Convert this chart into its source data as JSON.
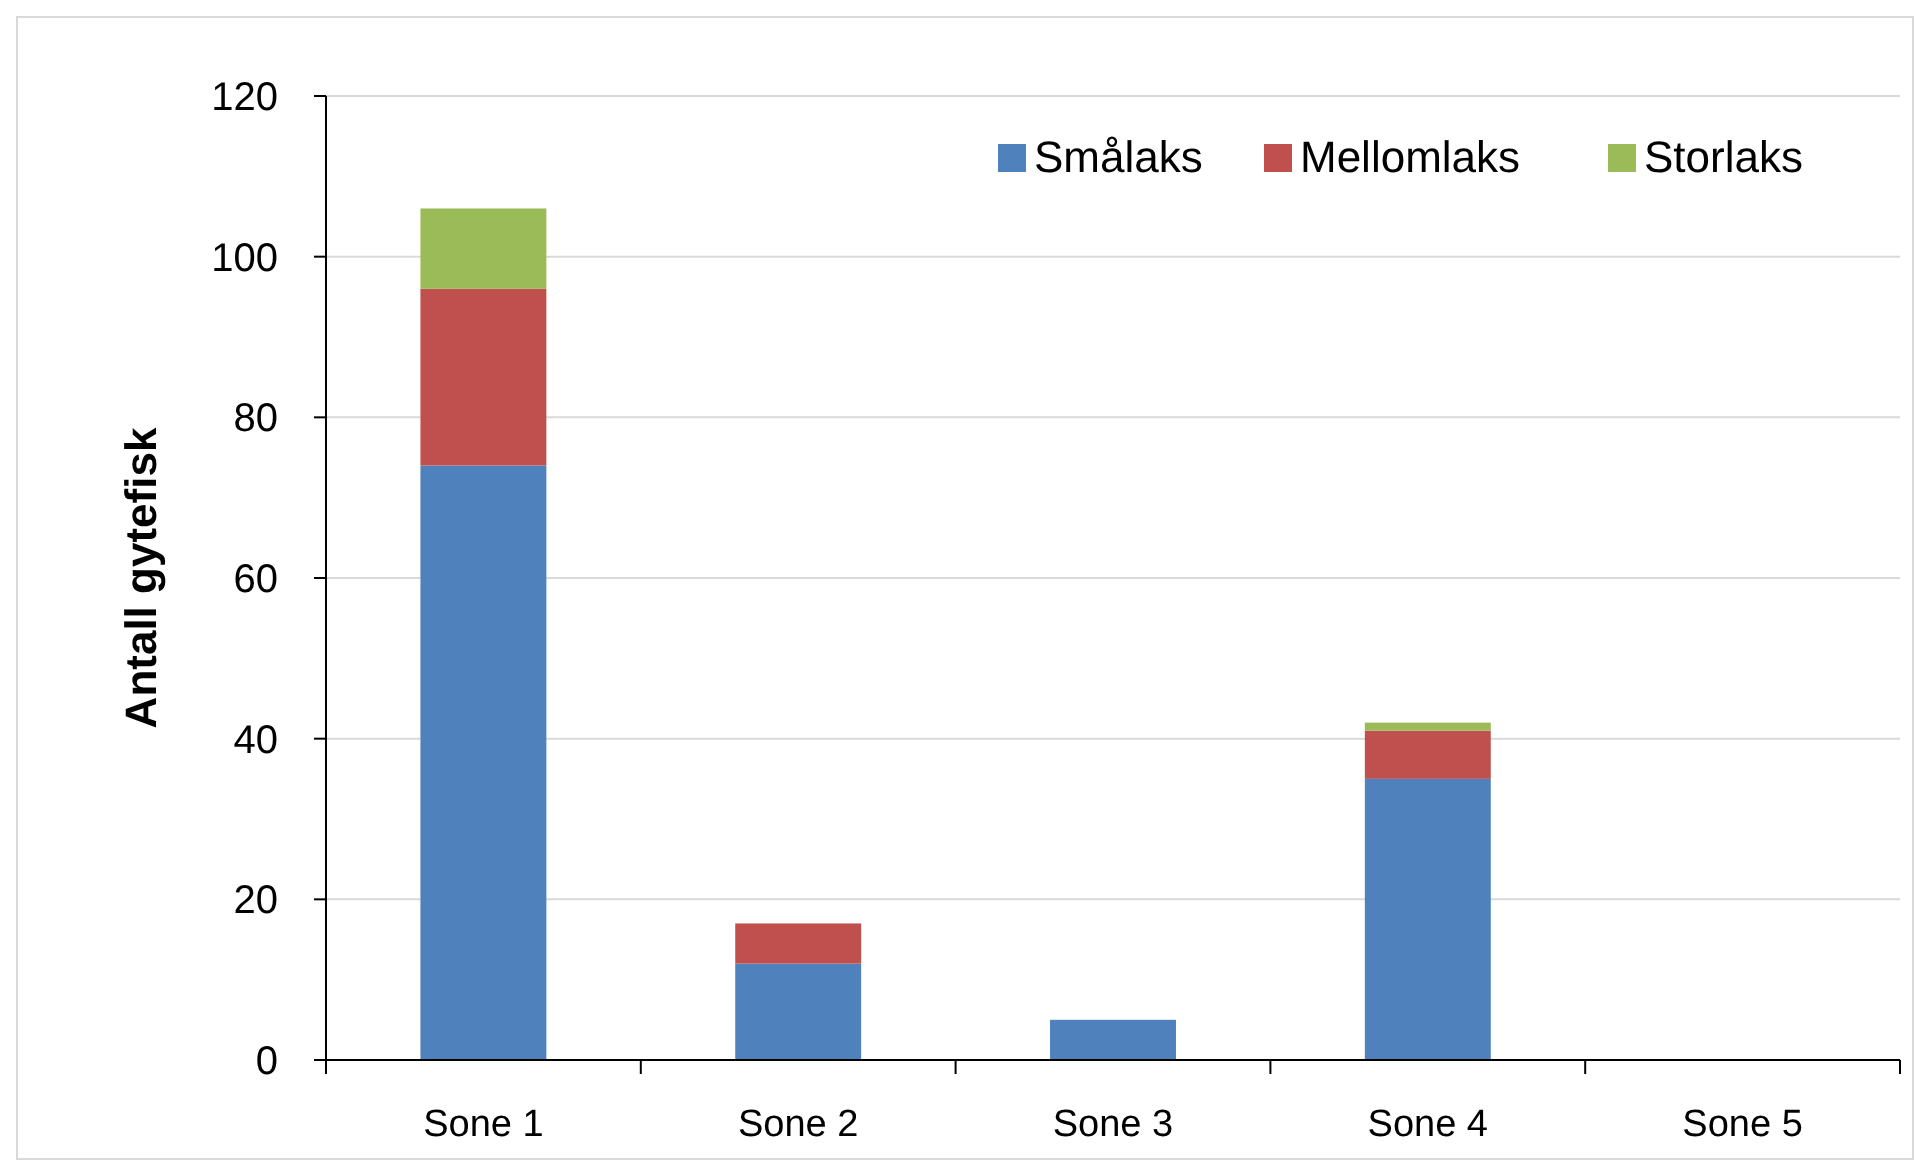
{
  "chart_data": {
    "type": "bar",
    "ylabel": "Antall gytefisk",
    "categories": [
      "Sone 1",
      "Sone 2",
      "Sone 3",
      "Sone 4",
      "Sone 5"
    ],
    "stacked": true,
    "series": [
      {
        "name": "Smålaks",
        "color": "#4f81bd",
        "values": [
          74,
          12,
          5,
          35,
          0
        ]
      },
      {
        "name": "Mellomlaks",
        "color": "#c0504d",
        "values": [
          22,
          5,
          0,
          6,
          0
        ]
      },
      {
        "name": "Storlaks",
        "color": "#9bbb59",
        "values": [
          10,
          0,
          0,
          1,
          0
        ]
      }
    ],
    "ylim": [
      0,
      120
    ],
    "yticks": [
      0,
      20,
      40,
      60,
      80,
      100,
      120
    ],
    "grid": "y",
    "legend": "top right"
  }
}
